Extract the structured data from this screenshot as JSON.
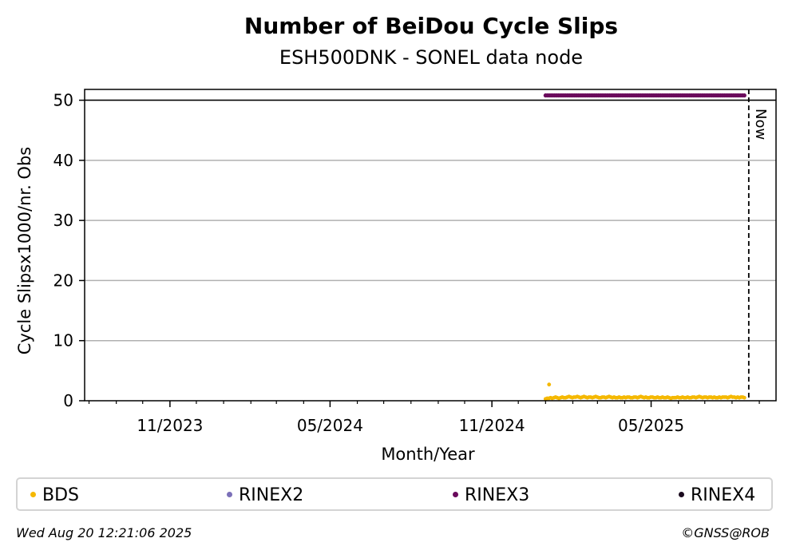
{
  "chart_data": {
    "type": "scatter",
    "title": "Number of BeiDou Cycle Slips",
    "subtitle": "ESH500DNK - SONEL data node",
    "xlabel": "Month/Year",
    "ylabel": "Cycle Slipsx1000/nr. Obs",
    "xlim": [
      "2023-07-27",
      "2025-09-20"
    ],
    "ylim": [
      0,
      51.8
    ],
    "yticks": [
      0,
      10,
      20,
      30,
      40,
      50
    ],
    "xticks": [
      {
        "date": "2023-11-01",
        "label": "11/2023"
      },
      {
        "date": "2024-05-01",
        "label": "05/2024"
      },
      {
        "date": "2024-11-01",
        "label": "11/2024"
      },
      {
        "date": "2025-05-01",
        "label": "05/2025"
      }
    ],
    "minor_xticks": [
      "2023-08-01",
      "2023-09-01",
      "2023-10-01",
      "2023-12-01",
      "2024-01-01",
      "2024-02-01",
      "2024-03-01",
      "2024-04-01",
      "2024-06-01",
      "2024-07-01",
      "2024-08-01",
      "2024-09-01",
      "2024-10-01",
      "2024-12-01",
      "2025-01-01",
      "2025-02-01",
      "2025-03-01",
      "2025-04-01",
      "2025-06-01",
      "2025-07-01",
      "2025-08-01",
      "2025-09-01"
    ],
    "grid": "horizontal",
    "reference_line": {
      "y": 50
    },
    "now": {
      "date": "2025-08-20",
      "label": "Now"
    },
    "series": [
      {
        "name": "BDS",
        "color": "#f5b800",
        "x_start": "2025-01-01",
        "x_end": "2025-08-15",
        "values": [
          0.3,
          0.4,
          0.4,
          0.5,
          0.4,
          0.5,
          0.6,
          0.5,
          0.4,
          0.5,
          0.6,
          0.5,
          0.5,
          0.6,
          0.7,
          0.6,
          0.5,
          0.6,
          0.6,
          0.7,
          0.6,
          0.5,
          0.6,
          0.7,
          0.6,
          0.5,
          0.6,
          0.6,
          0.5,
          0.6,
          0.7,
          0.6,
          0.5,
          0.5,
          0.6,
          0.6,
          0.5,
          0.6,
          0.7,
          0.6,
          0.5,
          0.6,
          0.5,
          0.5,
          0.6,
          0.5,
          0.5,
          0.6,
          0.5,
          0.6,
          0.6,
          0.5,
          0.5,
          0.6,
          0.6,
          0.5,
          0.6,
          0.7,
          0.6,
          0.5,
          0.6,
          0.5,
          0.5,
          0.6,
          0.6,
          0.5,
          0.5,
          0.6,
          0.5,
          0.5,
          0.6,
          0.5,
          0.5,
          0.6,
          0.5,
          0.4,
          0.5,
          0.5,
          0.5,
          0.6,
          0.5,
          0.5,
          0.6,
          0.5,
          0.5,
          0.6,
          0.5,
          0.5,
          0.6,
          0.6,
          0.5,
          0.6,
          0.7,
          0.6,
          0.5,
          0.6,
          0.6,
          0.5,
          0.6,
          0.6,
          0.5,
          0.6,
          0.5,
          0.5,
          0.6,
          0.5,
          0.6,
          0.6,
          0.6,
          0.5,
          0.6,
          0.7,
          0.6,
          0.6,
          0.5,
          0.6,
          0.5,
          0.6,
          0.6,
          0.5
        ],
        "outliers": [
          {
            "x": "2025-01-05",
            "y": 2.7
          }
        ]
      },
      {
        "name": "RINEX2",
        "color": "#7b70b8",
        "x_start": null,
        "x_end": null,
        "values": []
      },
      {
        "name": "RINEX3",
        "color": "#6a0a5c",
        "x_start": "2025-01-01",
        "x_end": "2025-08-15",
        "values": "above-range",
        "y_display": 50.8
      },
      {
        "name": "RINEX4",
        "color": "#1a0a1e",
        "x_start": null,
        "x_end": null,
        "values": []
      }
    ]
  },
  "footer": {
    "timestamp": "Wed Aug 20 12:21:06 2025",
    "credit": "©GNSS@ROB"
  }
}
